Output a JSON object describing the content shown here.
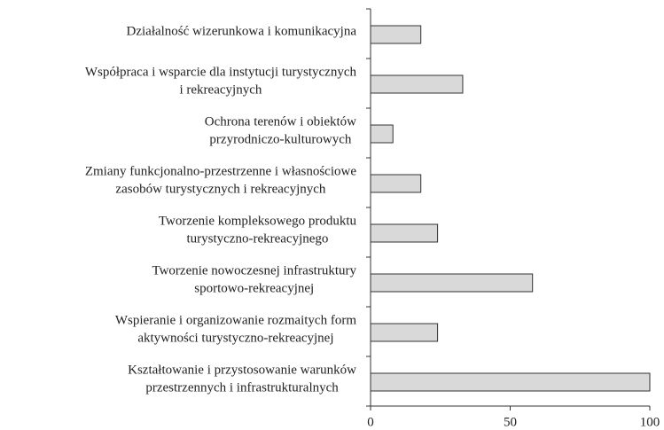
{
  "chart_data": {
    "type": "bar",
    "orientation": "horizontal",
    "categories": [
      [
        "Działalność wizerunkowa i komunikacyjna"
      ],
      [
        "Współpraca i wsparcie dla instytucji turystycznych",
        "i rekreacyjnych"
      ],
      [
        "Ochrona terenów i obiektów",
        "przyrodniczo-kulturowych"
      ],
      [
        "Zmiany funkcjonalno-przestrzenne i własnościowe",
        "zasobów turystycznych i rekreacyjnych"
      ],
      [
        "Tworzenie kompleksowego produktu",
        "turystyczno-rekreacyjnego"
      ],
      [
        "Tworzenie nowoczesnej infrastruktury",
        "sportowo-rekreacyjnej"
      ],
      [
        "Wspieranie i organizowanie rozmaitych form",
        "aktywności turystyczno-rekreacyjnej"
      ],
      [
        "Kształtowanie i przystosowanie warunków",
        "przestrzennych i infrastrukturalnych"
      ]
    ],
    "values": [
      18,
      33,
      8,
      18,
      24,
      58,
      24,
      100
    ],
    "color": "#d9d9d9",
    "xlim": [
      0,
      100
    ],
    "xticks": [
      0,
      50,
      100
    ]
  }
}
